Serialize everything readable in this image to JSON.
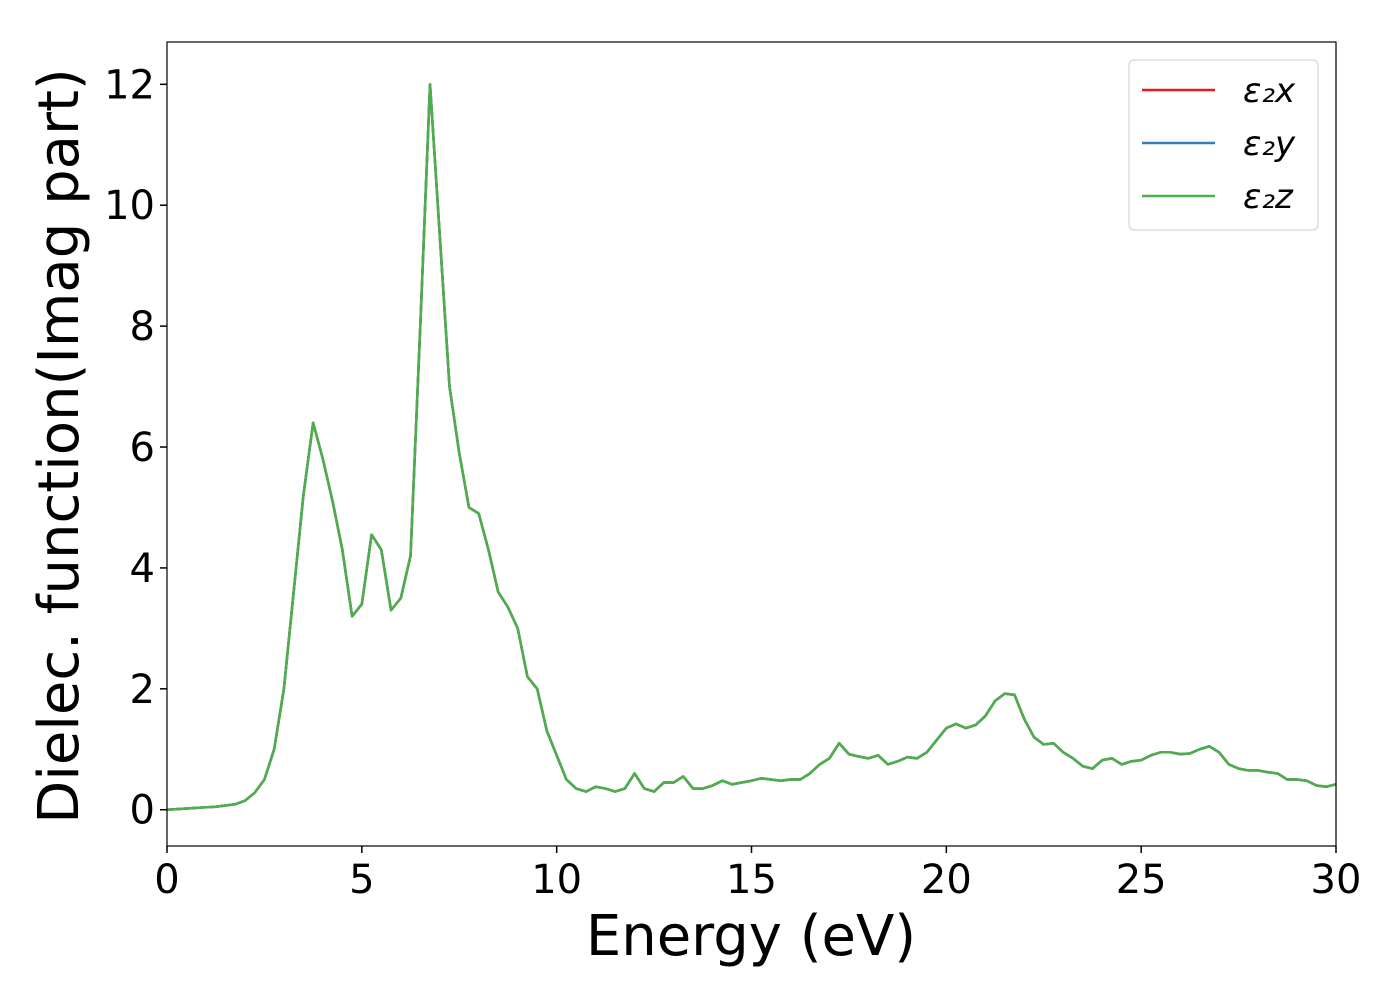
{
  "chart_data": {
    "type": "line",
    "xlabel": "Energy (eV)",
    "ylabel": "Dielec. function(Imag part)",
    "x": [
      0,
      0.25,
      0.5,
      0.75,
      1,
      1.25,
      1.5,
      1.75,
      2,
      2.25,
      2.5,
      2.75,
      3,
      3.25,
      3.5,
      3.75,
      4,
      4.25,
      4.5,
      4.75,
      5,
      5.25,
      5.5,
      5.75,
      6,
      6.25,
      6.5,
      6.75,
      7,
      7.25,
      7.5,
      7.75,
      8,
      8.25,
      8.5,
      8.75,
      9,
      9.25,
      9.5,
      9.75,
      10,
      10.25,
      10.5,
      10.75,
      11,
      11.25,
      11.5,
      11.75,
      12,
      12.25,
      12.5,
      12.75,
      13,
      13.25,
      13.5,
      13.75,
      14,
      14.25,
      14.5,
      14.75,
      15,
      15.25,
      15.5,
      15.75,
      16,
      16.25,
      16.5,
      16.75,
      17,
      17.25,
      17.5,
      17.75,
      18,
      18.25,
      18.5,
      18.75,
      19,
      19.25,
      19.5,
      19.75,
      20,
      20.25,
      20.5,
      20.75,
      21,
      21.25,
      21.5,
      21.75,
      22,
      22.25,
      22.5,
      22.75,
      23,
      23.25,
      23.5,
      23.75,
      24,
      24.25,
      24.5,
      24.75,
      25,
      25.25,
      25.5,
      25.75,
      26,
      26.25,
      26.5,
      26.75,
      27,
      27.25,
      27.5,
      27.75,
      28,
      28.25,
      28.5,
      28.75,
      29,
      29.25,
      29.5,
      29.75,
      30
    ],
    "series": [
      {
        "name": "ε₂x",
        "color": "#e41a1c",
        "values": [
          0,
          0.01,
          0.02,
          0.03,
          0.04,
          0.05,
          0.07,
          0.09,
          0.15,
          0.28,
          0.5,
          1.0,
          2.0,
          3.6,
          5.2,
          6.4,
          5.8,
          5.1,
          4.3,
          3.2,
          3.4,
          4.55,
          4.3,
          3.3,
          3.5,
          4.2,
          8.0,
          12.0,
          9.5,
          7.0,
          5.9,
          5.0,
          4.9,
          4.3,
          3.6,
          3.35,
          3.0,
          2.2,
          2.0,
          1.3,
          0.9,
          0.5,
          0.35,
          0.3,
          0.38,
          0.35,
          0.3,
          0.35,
          0.6,
          0.35,
          0.3,
          0.45,
          0.45,
          0.55,
          0.35,
          0.35,
          0.4,
          0.48,
          0.42,
          0.45,
          0.48,
          0.52,
          0.5,
          0.48,
          0.5,
          0.5,
          0.6,
          0.75,
          0.85,
          1.1,
          0.92,
          0.88,
          0.85,
          0.9,
          0.75,
          0.8,
          0.87,
          0.85,
          0.95,
          1.15,
          1.35,
          1.42,
          1.35,
          1.4,
          1.55,
          1.8,
          1.92,
          1.9,
          1.5,
          1.2,
          1.08,
          1.1,
          0.95,
          0.85,
          0.72,
          0.68,
          0.82,
          0.85,
          0.75,
          0.8,
          0.82,
          0.9,
          0.95,
          0.95,
          0.92,
          0.93,
          1.0,
          1.05,
          0.95,
          0.75,
          0.68,
          0.65,
          0.65,
          0.62,
          0.6,
          0.5,
          0.5,
          0.48,
          0.4,
          0.38,
          0.42
        ]
      },
      {
        "name": "ε₂y",
        "color": "#377eb8",
        "values": [
          0,
          0.01,
          0.02,
          0.03,
          0.04,
          0.05,
          0.07,
          0.09,
          0.15,
          0.28,
          0.5,
          1.0,
          2.0,
          3.6,
          5.2,
          6.4,
          5.8,
          5.1,
          4.3,
          3.2,
          3.4,
          4.55,
          4.3,
          3.3,
          3.5,
          4.2,
          8.0,
          12.0,
          9.5,
          7.0,
          5.9,
          5.0,
          4.9,
          4.3,
          3.6,
          3.35,
          3.0,
          2.2,
          2.0,
          1.3,
          0.9,
          0.5,
          0.35,
          0.3,
          0.38,
          0.35,
          0.3,
          0.35,
          0.6,
          0.35,
          0.3,
          0.45,
          0.45,
          0.55,
          0.35,
          0.35,
          0.4,
          0.48,
          0.42,
          0.45,
          0.48,
          0.52,
          0.5,
          0.48,
          0.5,
          0.5,
          0.6,
          0.75,
          0.85,
          1.1,
          0.92,
          0.88,
          0.85,
          0.9,
          0.75,
          0.8,
          0.87,
          0.85,
          0.95,
          1.15,
          1.35,
          1.42,
          1.35,
          1.4,
          1.55,
          1.8,
          1.92,
          1.9,
          1.5,
          1.2,
          1.08,
          1.1,
          0.95,
          0.85,
          0.72,
          0.68,
          0.82,
          0.85,
          0.75,
          0.8,
          0.82,
          0.9,
          0.95,
          0.95,
          0.92,
          0.93,
          1.0,
          1.05,
          0.95,
          0.75,
          0.68,
          0.65,
          0.65,
          0.62,
          0.6,
          0.5,
          0.5,
          0.48,
          0.4,
          0.38,
          0.42
        ]
      },
      {
        "name": "ε₂z",
        "color": "#4daf4a",
        "values": [
          0,
          0.01,
          0.02,
          0.03,
          0.04,
          0.05,
          0.07,
          0.09,
          0.15,
          0.28,
          0.5,
          1.0,
          2.0,
          3.6,
          5.2,
          6.4,
          5.8,
          5.1,
          4.3,
          3.2,
          3.4,
          4.55,
          4.3,
          3.3,
          3.5,
          4.2,
          8.0,
          12.0,
          9.5,
          7.0,
          5.9,
          5.0,
          4.9,
          4.3,
          3.6,
          3.35,
          3.0,
          2.2,
          2.0,
          1.3,
          0.9,
          0.5,
          0.35,
          0.3,
          0.38,
          0.35,
          0.3,
          0.35,
          0.6,
          0.35,
          0.3,
          0.45,
          0.45,
          0.55,
          0.35,
          0.35,
          0.4,
          0.48,
          0.42,
          0.45,
          0.48,
          0.52,
          0.5,
          0.48,
          0.5,
          0.5,
          0.6,
          0.75,
          0.85,
          1.1,
          0.92,
          0.88,
          0.85,
          0.9,
          0.75,
          0.8,
          0.87,
          0.85,
          0.95,
          1.15,
          1.35,
          1.42,
          1.35,
          1.4,
          1.55,
          1.8,
          1.92,
          1.9,
          1.5,
          1.2,
          1.08,
          1.1,
          0.95,
          0.85,
          0.72,
          0.68,
          0.82,
          0.85,
          0.75,
          0.8,
          0.82,
          0.9,
          0.95,
          0.95,
          0.92,
          0.93,
          1.0,
          1.05,
          0.95,
          0.75,
          0.68,
          0.65,
          0.65,
          0.62,
          0.6,
          0.5,
          0.5,
          0.48,
          0.4,
          0.38,
          0.42
        ]
      }
    ],
    "xlim": [
      0,
      30
    ],
    "xticks": [
      0,
      5,
      10,
      15,
      20,
      25,
      30
    ],
    "ylim": [
      -0.6,
      12.7
    ],
    "yticks": [
      0,
      2,
      4,
      6,
      8,
      10,
      12
    ],
    "grid": false,
    "legend": "upper right"
  }
}
